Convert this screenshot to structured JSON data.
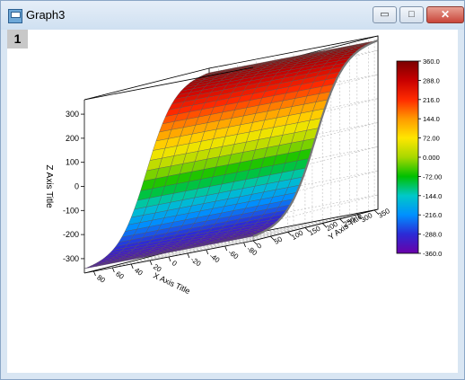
{
  "window": {
    "title": "Graph3",
    "minimize_glyph": "▭",
    "maximize_glyph": "□",
    "close_glyph": "✕"
  },
  "layer_badge": "1",
  "chart_data": {
    "type": "surface3d",
    "xlabel": "X Axis Title",
    "ylabel": "Y Axis Title",
    "zlabel": "Z Axis Title",
    "x_ticks": [
      "-80",
      "-60",
      "-40",
      "-20",
      "0",
      "20",
      "40",
      "60",
      "80"
    ],
    "y_ticks": [
      "0",
      "50",
      "100",
      "150",
      "200",
      "250",
      "300",
      "350"
    ],
    "z_ticks": [
      "-300",
      "-200",
      "-100",
      "0",
      "100",
      "200",
      "300"
    ],
    "colorbar_ticks": [
      "360.0",
      "288.0",
      "216.0",
      "144.0",
      "72.00",
      "0.000",
      "-72.00",
      "-144.0",
      "-216.0",
      "-288.0",
      "-360.0"
    ],
    "colormap": [
      "#6a00a8",
      "#2b2bd6",
      "#0090ff",
      "#00c8c8",
      "#00c000",
      "#a8d800",
      "#ffe600",
      "#ff9a00",
      "#ff2a00",
      "#c80000",
      "#7a0000"
    ],
    "zlim": [
      -360,
      360
    ],
    "xlim": [
      -90,
      90
    ],
    "ylim": [
      0,
      360
    ],
    "grid": true
  }
}
